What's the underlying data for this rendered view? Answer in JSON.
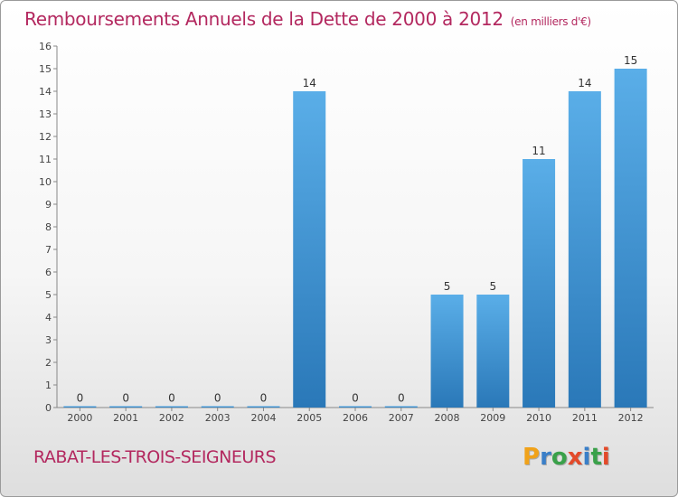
{
  "header": {
    "title": "Remboursements Annuels de la Dette de 2000 à 2012",
    "unit": "(en milliers d'€)"
  },
  "footer": {
    "commune": "RABAT-LES-TROIS-SEIGNEURS",
    "logo_letters": [
      "P",
      "r",
      "o",
      "x",
      "i",
      "t",
      "i"
    ],
    "logo_colors": [
      "#f0a21a",
      "#3a7fc8",
      "#3aa14a",
      "#e34a2a",
      "#3a7fc8",
      "#3aa14a",
      "#e34a2a"
    ]
  },
  "chart_data": {
    "type": "bar",
    "title": "Remboursements Annuels de la Dette de 2000 à 2012",
    "xlabel": "",
    "ylabel": "",
    "categories": [
      "2000",
      "2001",
      "2002",
      "2003",
      "2004",
      "2005",
      "2006",
      "2007",
      "2008",
      "2009",
      "2010",
      "2011",
      "2012"
    ],
    "values": [
      0,
      0,
      0,
      0,
      0,
      14,
      0,
      0,
      5,
      5,
      11,
      14,
      15
    ],
    "ylim": [
      0,
      16
    ],
    "yticks": [
      0,
      1,
      2,
      3,
      4,
      5,
      6,
      7,
      8,
      9,
      10,
      11,
      12,
      13,
      14,
      15,
      16
    ],
    "grid": false,
    "bar_color_top": "#5aaee8",
    "bar_color_bottom": "#2a78b8"
  }
}
